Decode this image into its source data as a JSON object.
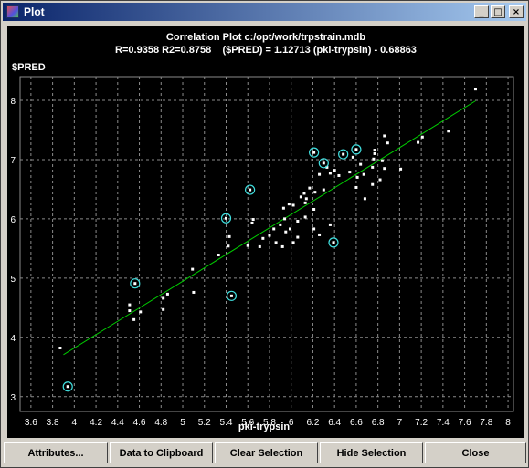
{
  "window": {
    "title": "Plot"
  },
  "title_buttons": {
    "minimize": "_",
    "maximize": "□",
    "close": "×"
  },
  "plot": {
    "title_line1": "Correlation Plot c:/opt/work/trpstrain.mdb",
    "title_line2": "R=0.9358 R2=0.8758    ($PRED) = 1.12713 (pki-trypsin) - 0.68863",
    "colors": {
      "background": "#000000",
      "points": "#ffffff",
      "grid": "#8a8a8a",
      "fit_line": "#00cc00",
      "highlight": "#40e0e0",
      "text": "#ffffff"
    }
  },
  "chart_data": {
    "type": "scatter",
    "title": "Correlation Plot c:/opt/work/trpstrain.mdb",
    "subtitle": "R=0.9358 R2=0.8758    ($PRED) = 1.12713 (pki-trypsin) - 0.68863",
    "xlabel": "pki-trypsin",
    "ylabel": "$PRED",
    "xlim": [
      3.5,
      8.05
    ],
    "ylim": [
      2.75,
      8.4
    ],
    "xticks": [
      "3.6",
      "3.8",
      "4",
      "4.2",
      "4.4",
      "4.6",
      "4.8",
      "5",
      "5.2",
      "5.4",
      "5.6",
      "5.8",
      "6",
      "6.2",
      "6.4",
      "6.6",
      "6.8",
      "7",
      "7.2",
      "7.4",
      "7.6",
      "7.8",
      "8"
    ],
    "yticks": [
      "3",
      "4",
      "5",
      "6",
      "7",
      "8"
    ],
    "grid": true,
    "fit_line": {
      "slope": 1.12713,
      "intercept": -0.68863,
      "x_range": [
        3.9,
        7.7
      ]
    },
    "points": [
      [
        3.87,
        3.82
      ],
      [
        4.51,
        4.45
      ],
      [
        4.51,
        4.55
      ],
      [
        4.55,
        4.3
      ],
      [
        4.61,
        4.43
      ],
      [
        4.82,
        4.47
      ],
      [
        4.82,
        4.66
      ],
      [
        4.86,
        4.73
      ],
      [
        5.09,
        5.15
      ],
      [
        5.1,
        4.76
      ],
      [
        5.33,
        5.39
      ],
      [
        5.42,
        5.54
      ],
      [
        5.43,
        5.7
      ],
      [
        5.6,
        5.55
      ],
      [
        5.64,
        5.93
      ],
      [
        5.65,
        5.99
      ],
      [
        5.71,
        5.53
      ],
      [
        5.74,
        5.67
      ],
      [
        5.8,
        5.72
      ],
      [
        5.84,
        5.83
      ],
      [
        5.86,
        5.6
      ],
      [
        5.9,
        5.9
      ],
      [
        5.92,
        5.53
      ],
      [
        5.93,
        6.18
      ],
      [
        5.94,
        6.0
      ],
      [
        5.95,
        5.78
      ],
      [
        5.98,
        6.25
      ],
      [
        5.99,
        5.83
      ],
      [
        6.02,
        5.6
      ],
      [
        6.02,
        6.23
      ],
      [
        6.06,
        5.96
      ],
      [
        6.06,
        5.69
      ],
      [
        6.09,
        6.37
      ],
      [
        6.12,
        6.43
      ],
      [
        6.13,
        6.27
      ],
      [
        6.13,
        6.03
      ],
      [
        6.14,
        6.34
      ],
      [
        6.17,
        6.52
      ],
      [
        6.21,
        6.16
      ],
      [
        6.21,
        5.83
      ],
      [
        6.22,
        6.45
      ],
      [
        6.26,
        5.73
      ],
      [
        6.26,
        6.75
      ],
      [
        6.3,
        6.49
      ],
      [
        6.33,
        6.87
      ],
      [
        6.36,
        5.9
      ],
      [
        6.36,
        6.77
      ],
      [
        6.4,
        6.82
      ],
      [
        6.44,
        6.73
      ],
      [
        6.54,
        6.79
      ],
      [
        6.57,
        7.04
      ],
      [
        6.6,
        6.53
      ],
      [
        6.61,
        6.7
      ],
      [
        6.64,
        6.92
      ],
      [
        6.67,
        6.75
      ],
      [
        6.68,
        6.34
      ],
      [
        6.75,
        6.58
      ],
      [
        6.75,
        6.87
      ],
      [
        6.76,
        7.01
      ],
      [
        6.77,
        7.1
      ],
      [
        6.77,
        7.16
      ],
      [
        6.82,
        6.66
      ],
      [
        6.84,
        6.98
      ],
      [
        6.86,
        6.85
      ],
      [
        6.86,
        7.4
      ],
      [
        6.89,
        7.28
      ],
      [
        7.01,
        6.84
      ],
      [
        7.17,
        7.29
      ],
      [
        7.21,
        7.38
      ],
      [
        7.45,
        7.48
      ],
      [
        7.7,
        8.19
      ]
    ],
    "highlighted_points": [
      [
        3.94,
        3.17
      ],
      [
        4.56,
        4.91
      ],
      [
        5.4,
        6.01
      ],
      [
        5.45,
        4.7
      ],
      [
        5.62,
        6.49
      ],
      [
        6.21,
        7.12
      ],
      [
        6.3,
        6.94
      ],
      [
        6.39,
        5.6
      ],
      [
        6.48,
        7.09
      ],
      [
        6.6,
        7.17
      ]
    ]
  },
  "buttons": {
    "attributes": "Attributes...",
    "clipboard": "Data to Clipboard",
    "clear": "Clear Selection",
    "hide": "Hide Selection",
    "close": "Close"
  }
}
